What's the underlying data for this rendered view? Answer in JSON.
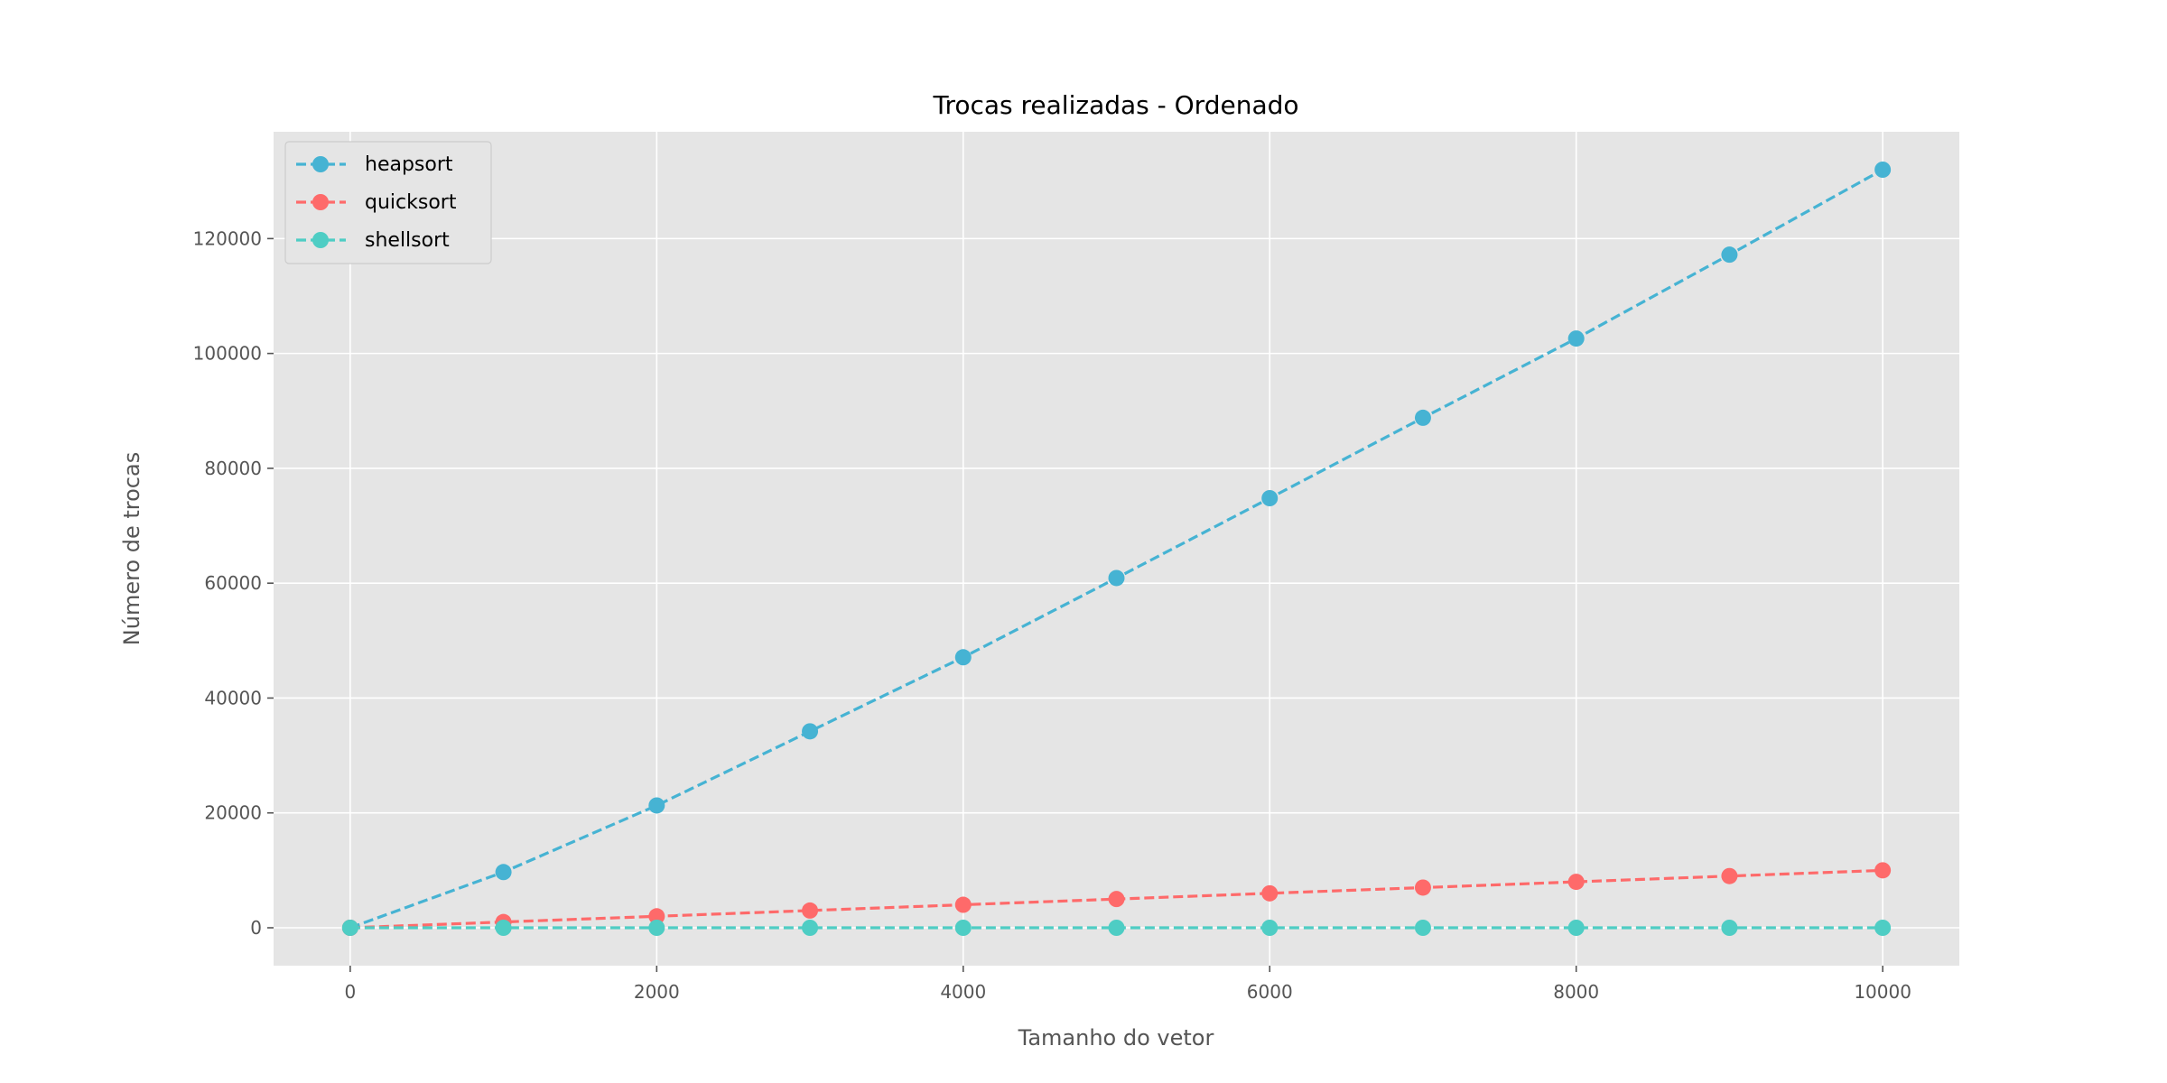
{
  "chart_data": {
    "type": "line",
    "title": "Trocas realizadas - Ordenado",
    "xlabel": "Tamanho do vetor",
    "ylabel": "Número de trocas",
    "x": [
      0,
      1000,
      2000,
      3000,
      4000,
      5000,
      6000,
      7000,
      8000,
      9000,
      10000
    ],
    "xlim": [
      -500,
      10500
    ],
    "ylim": [
      -6600,
      138600
    ],
    "xticks": [
      0,
      2000,
      4000,
      6000,
      8000,
      10000
    ],
    "xtick_labels": [
      "0",
      "2000",
      "4000",
      "6000",
      "8000",
      "10000"
    ],
    "yticks": [
      0,
      20000,
      40000,
      60000,
      80000,
      100000,
      120000
    ],
    "ytick_labels": [
      "0",
      "20000",
      "40000",
      "60000",
      "80000",
      "100000",
      "120000"
    ],
    "grid": true,
    "legend_position": "top-left",
    "line_style": "dashed",
    "marker": "circle",
    "series": [
      {
        "name": "heapsort",
        "color": "#46B3D3",
        "values": [
          0,
          9700,
          21300,
          34200,
          47100,
          60900,
          74800,
          88800,
          102600,
          117200,
          132000
        ]
      },
      {
        "name": "quicksort",
        "color": "#FE6A6A",
        "values": [
          0,
          1000,
          2000,
          3000,
          4000,
          5000,
          6000,
          7000,
          8000,
          9000,
          10000
        ]
      },
      {
        "name": "shellsort",
        "color": "#4ECDC4",
        "values": [
          0,
          0,
          0,
          0,
          0,
          0,
          0,
          0,
          0,
          0,
          0
        ]
      }
    ]
  }
}
